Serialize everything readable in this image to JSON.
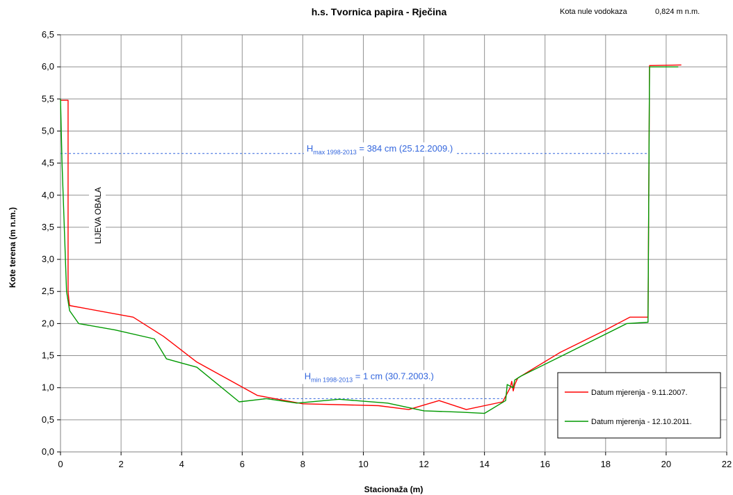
{
  "chart_data": {
    "type": "line",
    "title": "h.s. Tvornica papira - Rječina",
    "note_label": "Kota nule vodokaza",
    "note_value": "0,824 m n.m.",
    "xlabel": "Stacionaža (m)",
    "ylabel": "Kote terena (m n.m.)",
    "xlim": [
      0,
      22
    ],
    "ylim": [
      0,
      6.5
    ],
    "x_ticks": [
      "0",
      "2",
      "4",
      "6",
      "8",
      "10",
      "12",
      "14",
      "16",
      "18",
      "20",
      "22"
    ],
    "y_ticks": [
      "0,0",
      "0,5",
      "1,0",
      "1,5",
      "2,0",
      "2,5",
      "3,0",
      "3,5",
      "4,0",
      "4,5",
      "5,0",
      "5,5",
      "6,0",
      "6,5"
    ],
    "grid": true,
    "legend_position": "bottom-right",
    "series": [
      {
        "name": "Datum mjerenja - 9.11.2007.",
        "color": "#ff0000",
        "x": [
          0.0,
          0.25,
          0.25,
          0.28,
          0.3,
          2.4,
          3.4,
          4.5,
          6.5,
          8.0,
          10.5,
          11.5,
          12.5,
          13.4,
          14.6,
          14.85,
          14.9,
          14.95,
          15.0,
          15.1,
          16.5,
          18.0,
          18.8,
          19.4,
          19.45,
          20.5
        ],
        "y": [
          5.48,
          5.48,
          2.5,
          2.35,
          2.28,
          2.1,
          1.8,
          1.4,
          0.88,
          0.75,
          0.72,
          0.66,
          0.8,
          0.66,
          0.78,
          1.0,
          1.1,
          0.95,
          1.05,
          1.15,
          1.55,
          1.9,
          2.1,
          2.1,
          6.02,
          6.03
        ]
      },
      {
        "name": "Datum mjerenja - 12.10.2011.",
        "color": "#009900",
        "x": [
          0.0,
          0.05,
          0.2,
          0.3,
          0.6,
          1.8,
          3.1,
          3.5,
          4.5,
          5.9,
          6.8,
          7.8,
          9.2,
          10.8,
          12.0,
          13.2,
          14.0,
          14.7,
          14.75,
          14.95,
          15.0,
          15.2,
          17.0,
          18.7,
          19.4,
          19.45,
          20.4
        ],
        "y": [
          5.5,
          4.5,
          2.5,
          2.2,
          2.0,
          1.9,
          1.76,
          1.45,
          1.32,
          0.78,
          0.83,
          0.76,
          0.82,
          0.76,
          0.64,
          0.62,
          0.6,
          0.8,
          1.05,
          1.0,
          1.12,
          1.18,
          1.6,
          2.0,
          2.02,
          6.0,
          6.0
        ]
      }
    ],
    "reference_lines": [
      {
        "y": 4.65,
        "x_start": 0.0,
        "x_end": 19.4,
        "color": "#3366dd",
        "label_main": "H",
        "label_sub": "max 1998-2013",
        "label_rest": " = 384 cm (25.12.2009.)"
      },
      {
        "y": 0.83,
        "x_start": 6.7,
        "x_end": 14.6,
        "color": "#3366dd",
        "label_main": "H",
        "label_sub": "min 1998-2013",
        "label_rest": " = 1 cm (30.7.2003.)"
      }
    ],
    "bank_label": "LIJEVA OBALA"
  }
}
